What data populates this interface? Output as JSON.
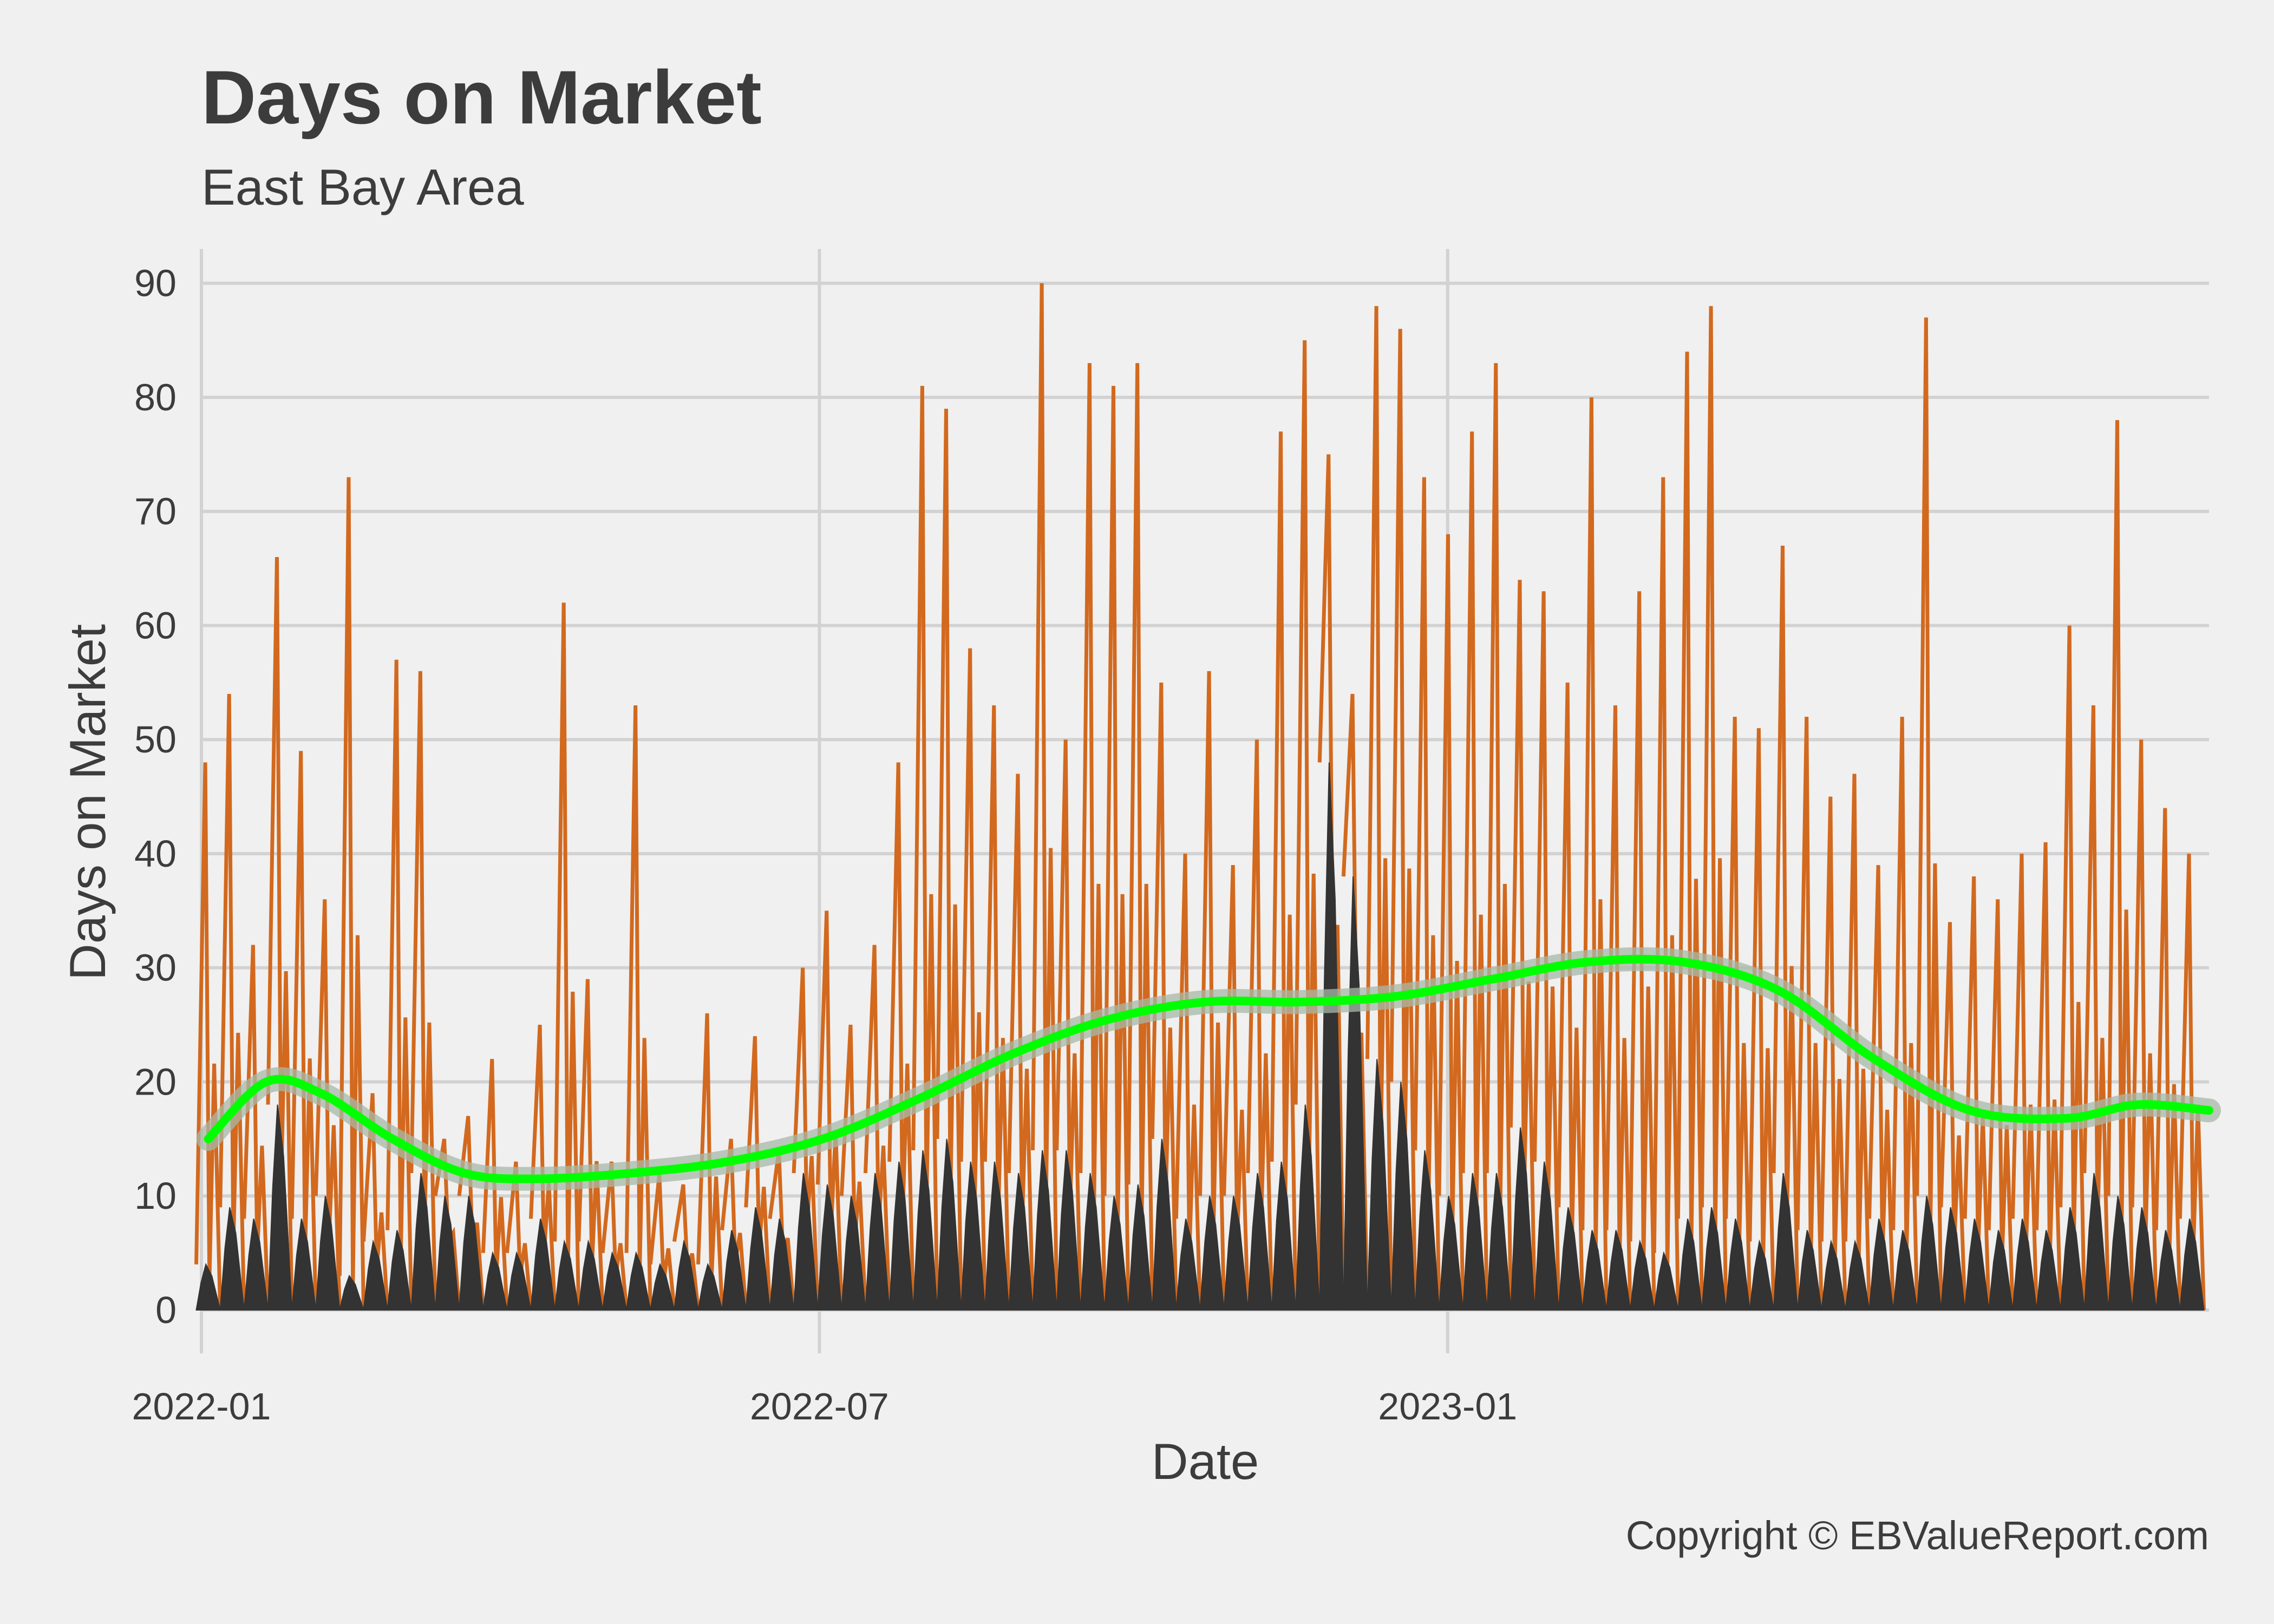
{
  "chart_data": {
    "type": "area",
    "title": "Days on Market",
    "subtitle": "East Bay Area",
    "xlabel": "Date",
    "ylabel": "Days on Market",
    "caption": "Copyright  © EBValueReport.com",
    "x_ticks": [
      "2022-01",
      "2022-07",
      "2023-01"
    ],
    "y_ticks": [
      "0",
      "10",
      "20",
      "30",
      "40",
      "50",
      "60",
      "70",
      "80",
      "90"
    ],
    "xlim": [
      "2022-01-01",
      "2023-08-12"
    ],
    "ylim": [
      0,
      93
    ],
    "grid": true,
    "legend": "none",
    "colors": {
      "max_days": "#d2691e",
      "median_days": "#333333",
      "smoothed_trend": "#00ff00",
      "trend_band": "#a8b8a8",
      "background": "#f0f0f0"
    },
    "series": [
      {
        "style": "orange spikes",
        "x": [
          "2022-01-03",
          "2022-01-10",
          "2022-01-17",
          "2022-01-24",
          "2022-01-31",
          "2022-02-07",
          "2022-02-14",
          "2022-02-21",
          "2022-02-28",
          "2022-03-07",
          "2022-03-14",
          "2022-03-21",
          "2022-03-28",
          "2022-04-04",
          "2022-04-11",
          "2022-04-18",
          "2022-04-25",
          "2022-05-02",
          "2022-05-09",
          "2022-05-16",
          "2022-05-23",
          "2022-05-30",
          "2022-06-06",
          "2022-06-13",
          "2022-06-20",
          "2022-06-27",
          "2022-07-04",
          "2022-07-11",
          "2022-07-18",
          "2022-07-25",
          "2022-08-01",
          "2022-08-08",
          "2022-08-15",
          "2022-08-22",
          "2022-08-29",
          "2022-09-05",
          "2022-09-12",
          "2022-09-19",
          "2022-09-26",
          "2022-10-03",
          "2022-10-10",
          "2022-10-17",
          "2022-10-24",
          "2022-10-31",
          "2022-11-07",
          "2022-11-14",
          "2022-11-21",
          "2022-11-28",
          "2022-12-05",
          "2022-12-12",
          "2022-12-19",
          "2022-12-26",
          "2023-01-02",
          "2023-01-09",
          "2023-01-16",
          "2023-01-23",
          "2023-01-30",
          "2023-02-06",
          "2023-02-13",
          "2023-02-20",
          "2023-02-27",
          "2023-03-06",
          "2023-03-13",
          "2023-03-20",
          "2023-03-27",
          "2023-04-03",
          "2023-04-10",
          "2023-04-17",
          "2023-04-24",
          "2023-05-01",
          "2023-05-08",
          "2023-05-15",
          "2023-05-22",
          "2023-05-29",
          "2023-06-05",
          "2023-06-12",
          "2023-06-19",
          "2023-06-26",
          "2023-07-03",
          "2023-07-10",
          "2023-07-17",
          "2023-07-24",
          "2023-07-31",
          "2023-08-07"
        ],
        "values": [
          48,
          54,
          32,
          66,
          49,
          36,
          73,
          19,
          57,
          56,
          15,
          17,
          22,
          13,
          25,
          62,
          29,
          13,
          53,
          12,
          11,
          26,
          15,
          24,
          14,
          30,
          35,
          25,
          32,
          48,
          81,
          79,
          58,
          53,
          47,
          90,
          50,
          83,
          81,
          83,
          55,
          40,
          56,
          39,
          50,
          77,
          85,
          75,
          54,
          88,
          86,
          73,
          68,
          77,
          83,
          64,
          63,
          55,
          80,
          53,
          63,
          73,
          84,
          88,
          52,
          51,
          67,
          52,
          45,
          47,
          39,
          52,
          87,
          34,
          38,
          36,
          40,
          41,
          60,
          53,
          78,
          50,
          44,
          40
        ]
      },
      {
        "style": "dark filled area",
        "values": [
          4,
          9,
          8,
          18,
          8,
          10,
          3,
          6,
          7,
          12,
          10,
          10,
          5,
          5,
          8,
          6,
          6,
          5,
          5,
          4,
          6,
          4,
          7,
          9,
          8,
          12,
          11,
          10,
          12,
          13,
          14,
          15,
          13,
          13,
          12,
          14,
          14,
          12,
          10,
          11,
          15,
          8,
          10,
          10,
          12,
          13,
          18,
          48,
          38,
          22,
          20,
          14,
          10,
          12,
          12,
          16,
          13,
          9,
          7,
          7,
          6,
          5,
          8,
          9,
          8,
          6,
          12,
          7,
          6,
          6,
          8,
          7,
          10,
          9,
          8,
          7,
          8,
          7,
          9,
          12,
          10,
          9,
          7,
          8
        ]
      },
      {
        "style": "green smoothed trend line with grey confidence band",
        "x": [
          "2022-01-03",
          "2022-01-20",
          "2022-02-05",
          "2022-02-26",
          "2022-03-19",
          "2022-04-09",
          "2022-05-07",
          "2022-06-04",
          "2022-07-02",
          "2022-07-30",
          "2022-08-27",
          "2022-09-24",
          "2022-10-22",
          "2022-11-19",
          "2022-12-17",
          "2023-01-14",
          "2023-02-11",
          "2023-03-11",
          "2023-04-08",
          "2023-05-06",
          "2023-06-03",
          "2023-07-01",
          "2023-07-22",
          "2023-08-12"
        ],
        "values": [
          15,
          20,
          19,
          15,
          12,
          11.5,
          12,
          13,
          15,
          18.5,
          22.5,
          25.5,
          27,
          27,
          27.5,
          29,
          30.5,
          30.5,
          28,
          22,
          17.5,
          16.8,
          18,
          17.5
        ]
      }
    ]
  }
}
